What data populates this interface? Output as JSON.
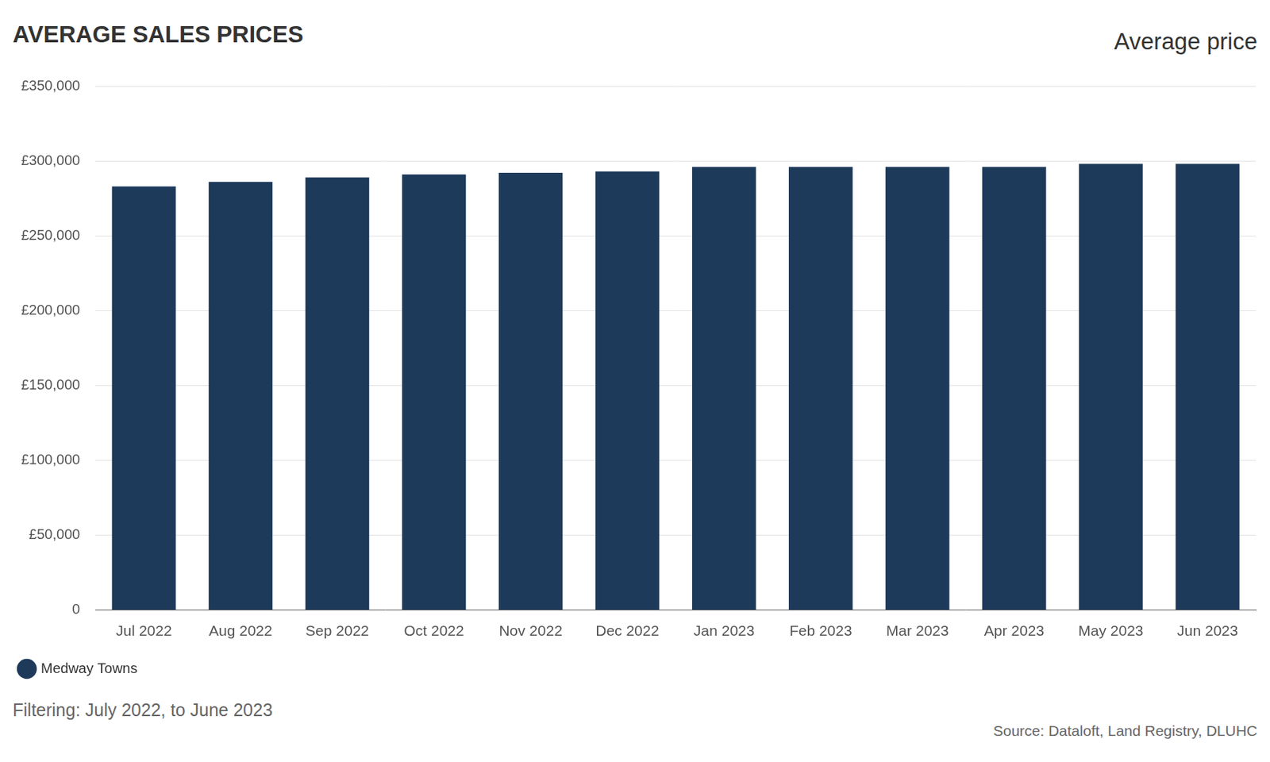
{
  "chart_data": {
    "type": "bar",
    "title": "AVERAGE SALES PRICES",
    "subtitle": "Average price",
    "annotations": [
      "Filtering: July 2022, to June 2023",
      "Source: Dataloft, Land Registry, DLUHC"
    ],
    "categories": [
      "Jul 2022",
      "Aug 2022",
      "Sep 2022",
      "Oct 2022",
      "Nov 2022",
      "Dec 2022",
      "Jan 2023",
      "Feb 2023",
      "Mar 2023",
      "Apr 2023",
      "May 2023",
      "Jun 2023"
    ],
    "series": [
      {
        "name": "Medway Towns",
        "color": "#1e3a5a",
        "values": [
          283000,
          286000,
          289000,
          291000,
          292000,
          293000,
          296000,
          296000,
          296000,
          296000,
          298000,
          298000
        ]
      }
    ],
    "ylim": [
      0,
      350000
    ],
    "yticks": [
      0,
      {
        "value": 50000,
        "label": "£50,000"
      },
      {
        "value": 100000,
        "label": "£100,000"
      },
      {
        "value": 150000,
        "label": "£150,000"
      },
      {
        "value": 200000,
        "label": "£200,000"
      },
      {
        "value": 250000,
        "label": "£250,000"
      },
      {
        "value": 300000,
        "label": "£300,000"
      },
      {
        "value": 350000,
        "label": "£350,000"
      }
    ],
    "grid": true,
    "legend": "bottom-left"
  }
}
